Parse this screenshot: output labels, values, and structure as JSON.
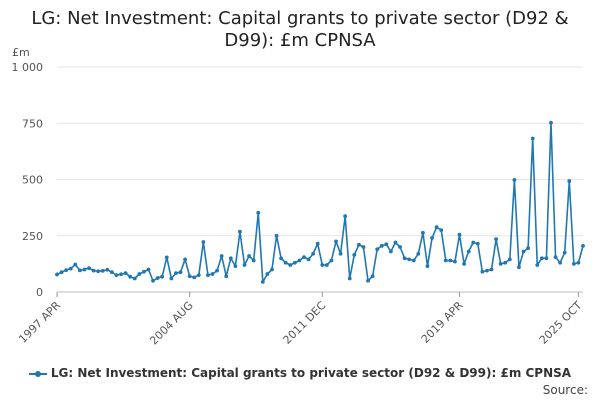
{
  "chart_data": {
    "type": "line",
    "title": "LG: Net Investment: Capital grants to private sector (D92 & D99): £m CPNSA",
    "ylabel": "£m",
    "xlabel": "",
    "ylim": [
      0,
      1000
    ],
    "yticks": [
      0,
      250,
      500,
      750,
      1000
    ],
    "ytick_labels": [
      "0",
      "250",
      "500",
      "750",
      "1 000"
    ],
    "xtick_labels": [
      "1997 APR",
      "2004 AUG",
      "2011 DEC",
      "2019 APR",
      "2025 OCT"
    ],
    "xtick_indices": [
      0,
      29,
      58,
      88,
      114
    ],
    "x_start": "1997 APR",
    "x_end": "2025 OCT",
    "frequency": "quarterly",
    "grid": true,
    "color": "#1f77b4",
    "series": [
      {
        "name": "LG: Net Investment: Capital grants to private sector (D92 & D99): £m CPNSA",
        "values": [
          78,
          88,
          97,
          104,
          122,
          96,
          100,
          106,
          95,
          92,
          94,
          99,
          88,
          75,
          79,
          84,
          68,
          60,
          80,
          90,
          100,
          50,
          62,
          68,
          154,
          60,
          84,
          88,
          145,
          70,
          65,
          75,
          222,
          75,
          80,
          95,
          160,
          70,
          150,
          115,
          268,
          120,
          160,
          140,
          352,
          45,
          80,
          100,
          250,
          150,
          130,
          120,
          130,
          140,
          155,
          145,
          170,
          215,
          120,
          120,
          140,
          225,
          170,
          337,
          60,
          165,
          210,
          200,
          50,
          70,
          190,
          205,
          212,
          180,
          220,
          200,
          150,
          145,
          140,
          170,
          263,
          115,
          240,
          288,
          275,
          140,
          140,
          135,
          255,
          125,
          180,
          220,
          215,
          90,
          95,
          100,
          235,
          125,
          130,
          145,
          498,
          110,
          180,
          195,
          682,
          120,
          150,
          150,
          752,
          155,
          130,
          175,
          493,
          125,
          130,
          205
        ]
      }
    ]
  },
  "legend": {
    "label": "LG: Net Investment: Capital grants to private sector (D92 & D99): £m CPNSA"
  },
  "source_label": "Source:"
}
